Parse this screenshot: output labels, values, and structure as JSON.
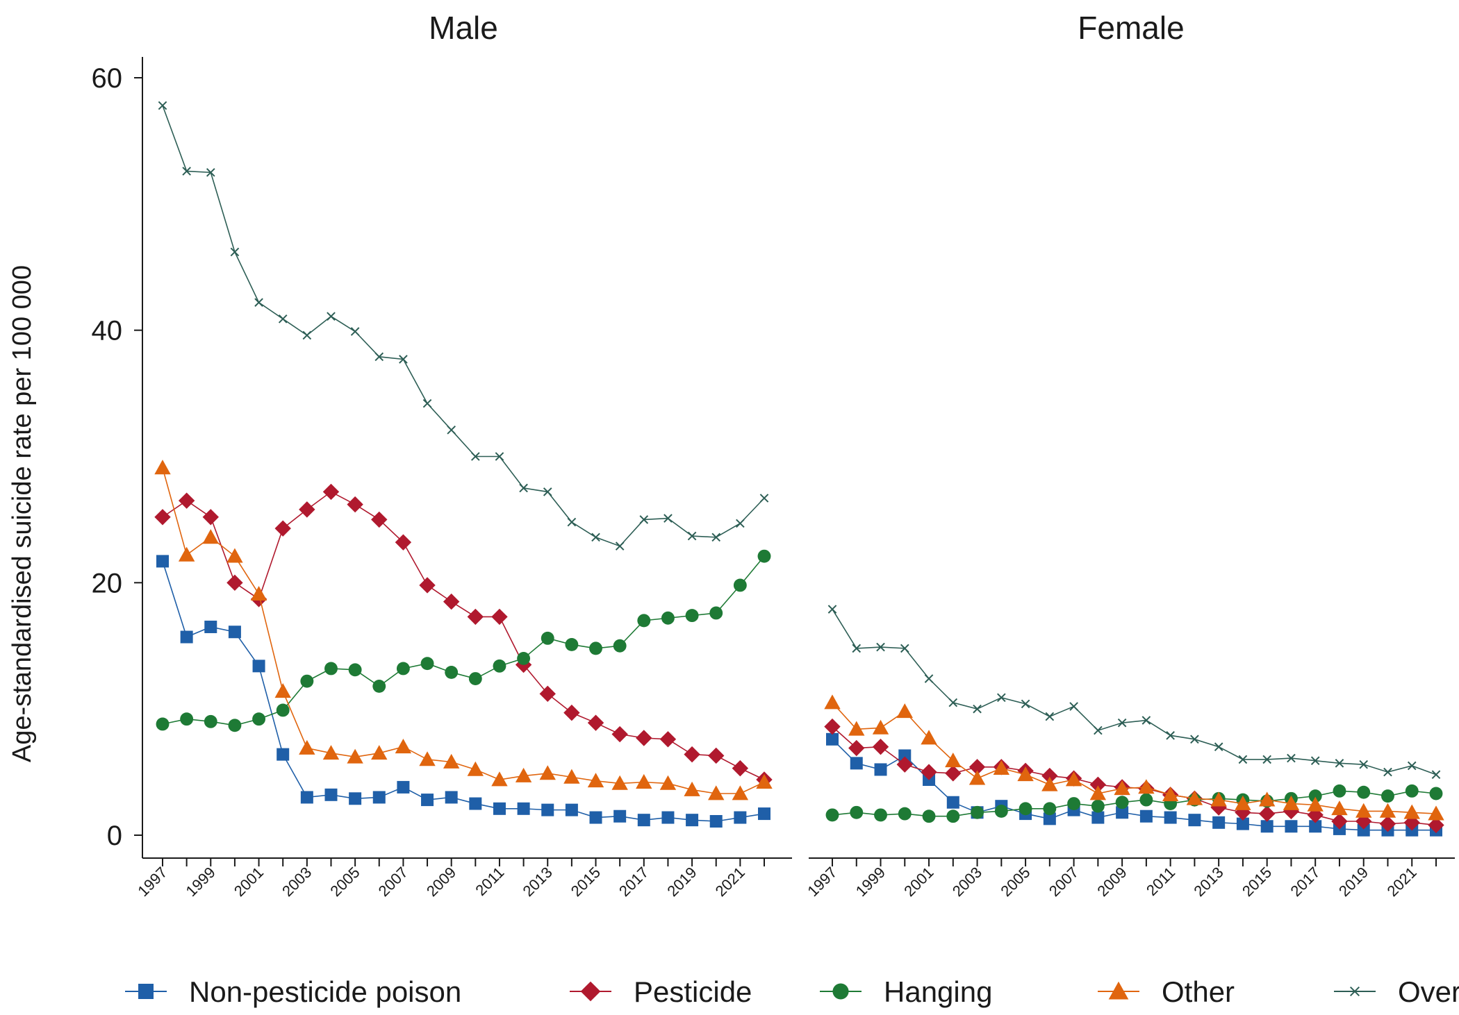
{
  "chart_data": {
    "type": "line",
    "ylabel": "Age-standardised suicide rate per 100 000",
    "ylim": [
      0,
      60
    ],
    "yticks": [
      0,
      20,
      40,
      60
    ],
    "x": [
      1997,
      1998,
      1999,
      2000,
      2001,
      2002,
      2003,
      2004,
      2005,
      2006,
      2007,
      2008,
      2009,
      2010,
      2011,
      2012,
      2013,
      2014,
      2015,
      2016,
      2017,
      2018,
      2019,
      2020,
      2021,
      2022
    ],
    "xtick_labels": [
      "1997",
      "1999",
      "2001",
      "2003",
      "2005",
      "2007",
      "2009",
      "2011",
      "2013",
      "2015",
      "2017",
      "2019",
      "2021"
    ],
    "legend_position": "bottom",
    "series_styles": [
      {
        "key": "nonpesticide",
        "name": "Non-pesticide poison",
        "color": "#1f5fa8",
        "marker": "square"
      },
      {
        "key": "pesticide",
        "name": "Pesticide",
        "color": "#b0192e",
        "marker": "diamond"
      },
      {
        "key": "hanging",
        "name": "Hanging",
        "color": "#1e7a35",
        "marker": "circle"
      },
      {
        "key": "other",
        "name": "Other",
        "color": "#e0650e",
        "marker": "triangle"
      },
      {
        "key": "overall",
        "name": "Overall",
        "color": "#2d5e55",
        "marker": "x"
      }
    ],
    "panels": [
      {
        "title": "Male",
        "series": {
          "nonpesticide": [
            21.7,
            15.7,
            16.5,
            16.1,
            13.4,
            6.4,
            3.0,
            3.2,
            2.9,
            3.0,
            3.8,
            2.8,
            3.0,
            2.5,
            2.1,
            2.1,
            2.0,
            2.0,
            1.4,
            1.5,
            1.2,
            1.4,
            1.2,
            1.1,
            1.4,
            1.7
          ],
          "pesticide": [
            25.2,
            26.5,
            25.2,
            20.0,
            18.7,
            24.3,
            25.8,
            27.2,
            26.2,
            25.0,
            23.2,
            19.8,
            18.5,
            17.3,
            17.3,
            13.5,
            11.2,
            9.7,
            8.9,
            8.0,
            7.7,
            7.6,
            6.4,
            6.3,
            5.3,
            4.4
          ],
          "hanging": [
            8.8,
            9.2,
            9.0,
            8.7,
            9.2,
            9.9,
            12.2,
            13.2,
            13.1,
            11.8,
            13.2,
            13.6,
            12.9,
            12.4,
            13.4,
            14.0,
            15.6,
            15.1,
            14.8,
            15.0,
            17.0,
            17.2,
            17.4,
            17.6,
            19.8,
            22.1
          ],
          "other": [
            29.1,
            22.2,
            23.6,
            22.1,
            19.1,
            11.4,
            6.9,
            6.5,
            6.2,
            6.5,
            7.0,
            6.0,
            5.8,
            5.2,
            4.4,
            4.7,
            4.9,
            4.6,
            4.3,
            4.1,
            4.2,
            4.1,
            3.6,
            3.3,
            3.3,
            4.2
          ],
          "overall": [
            57.8,
            52.6,
            52.5,
            46.2,
            42.2,
            40.9,
            39.6,
            41.1,
            39.9,
            37.9,
            37.7,
            34.2,
            32.1,
            30.0,
            30.0,
            27.5,
            27.2,
            24.8,
            23.6,
            22.9,
            25.0,
            25.1,
            23.7,
            23.6,
            24.7,
            26.7
          ]
        }
      },
      {
        "title": "Female",
        "series": {
          "nonpesticide": [
            7.6,
            5.7,
            5.2,
            6.3,
            4.4,
            2.6,
            1.8,
            2.3,
            1.7,
            1.3,
            2.0,
            1.4,
            1.8,
            1.5,
            1.4,
            1.2,
            1.0,
            0.9,
            0.7,
            0.7,
            0.7,
            0.5,
            0.4,
            0.4,
            0.4,
            0.4
          ],
          "pesticide": [
            8.6,
            6.9,
            7.0,
            5.6,
            5.0,
            4.9,
            5.4,
            5.4,
            5.1,
            4.7,
            4.5,
            4.0,
            3.8,
            3.7,
            3.2,
            2.9,
            2.2,
            1.8,
            1.7,
            1.9,
            1.6,
            1.1,
            1.1,
            0.9,
            1.0,
            0.8
          ],
          "hanging": [
            1.6,
            1.8,
            1.6,
            1.7,
            1.5,
            1.5,
            1.8,
            1.9,
            2.1,
            2.1,
            2.5,
            2.3,
            2.6,
            2.8,
            2.5,
            2.8,
            2.9,
            2.8,
            2.7,
            2.9,
            3.1,
            3.5,
            3.4,
            3.1,
            3.5,
            3.3
          ],
          "other": [
            10.5,
            8.4,
            8.5,
            9.8,
            7.7,
            5.9,
            4.5,
            5.3,
            4.8,
            4.0,
            4.4,
            3.3,
            3.7,
            3.8,
            3.2,
            2.9,
            2.8,
            2.5,
            2.8,
            2.5,
            2.4,
            2.1,
            1.9,
            1.9,
            1.8,
            1.7
          ],
          "overall": [
            17.9,
            14.8,
            14.9,
            14.8,
            12.4,
            10.5,
            10.0,
            10.9,
            10.4,
            9.4,
            10.2,
            8.3,
            8.9,
            9.1,
            7.9,
            7.6,
            7.0,
            6.0,
            6.0,
            6.1,
            5.9,
            5.7,
            5.6,
            5.0,
            5.5,
            4.8
          ]
        }
      }
    ]
  }
}
